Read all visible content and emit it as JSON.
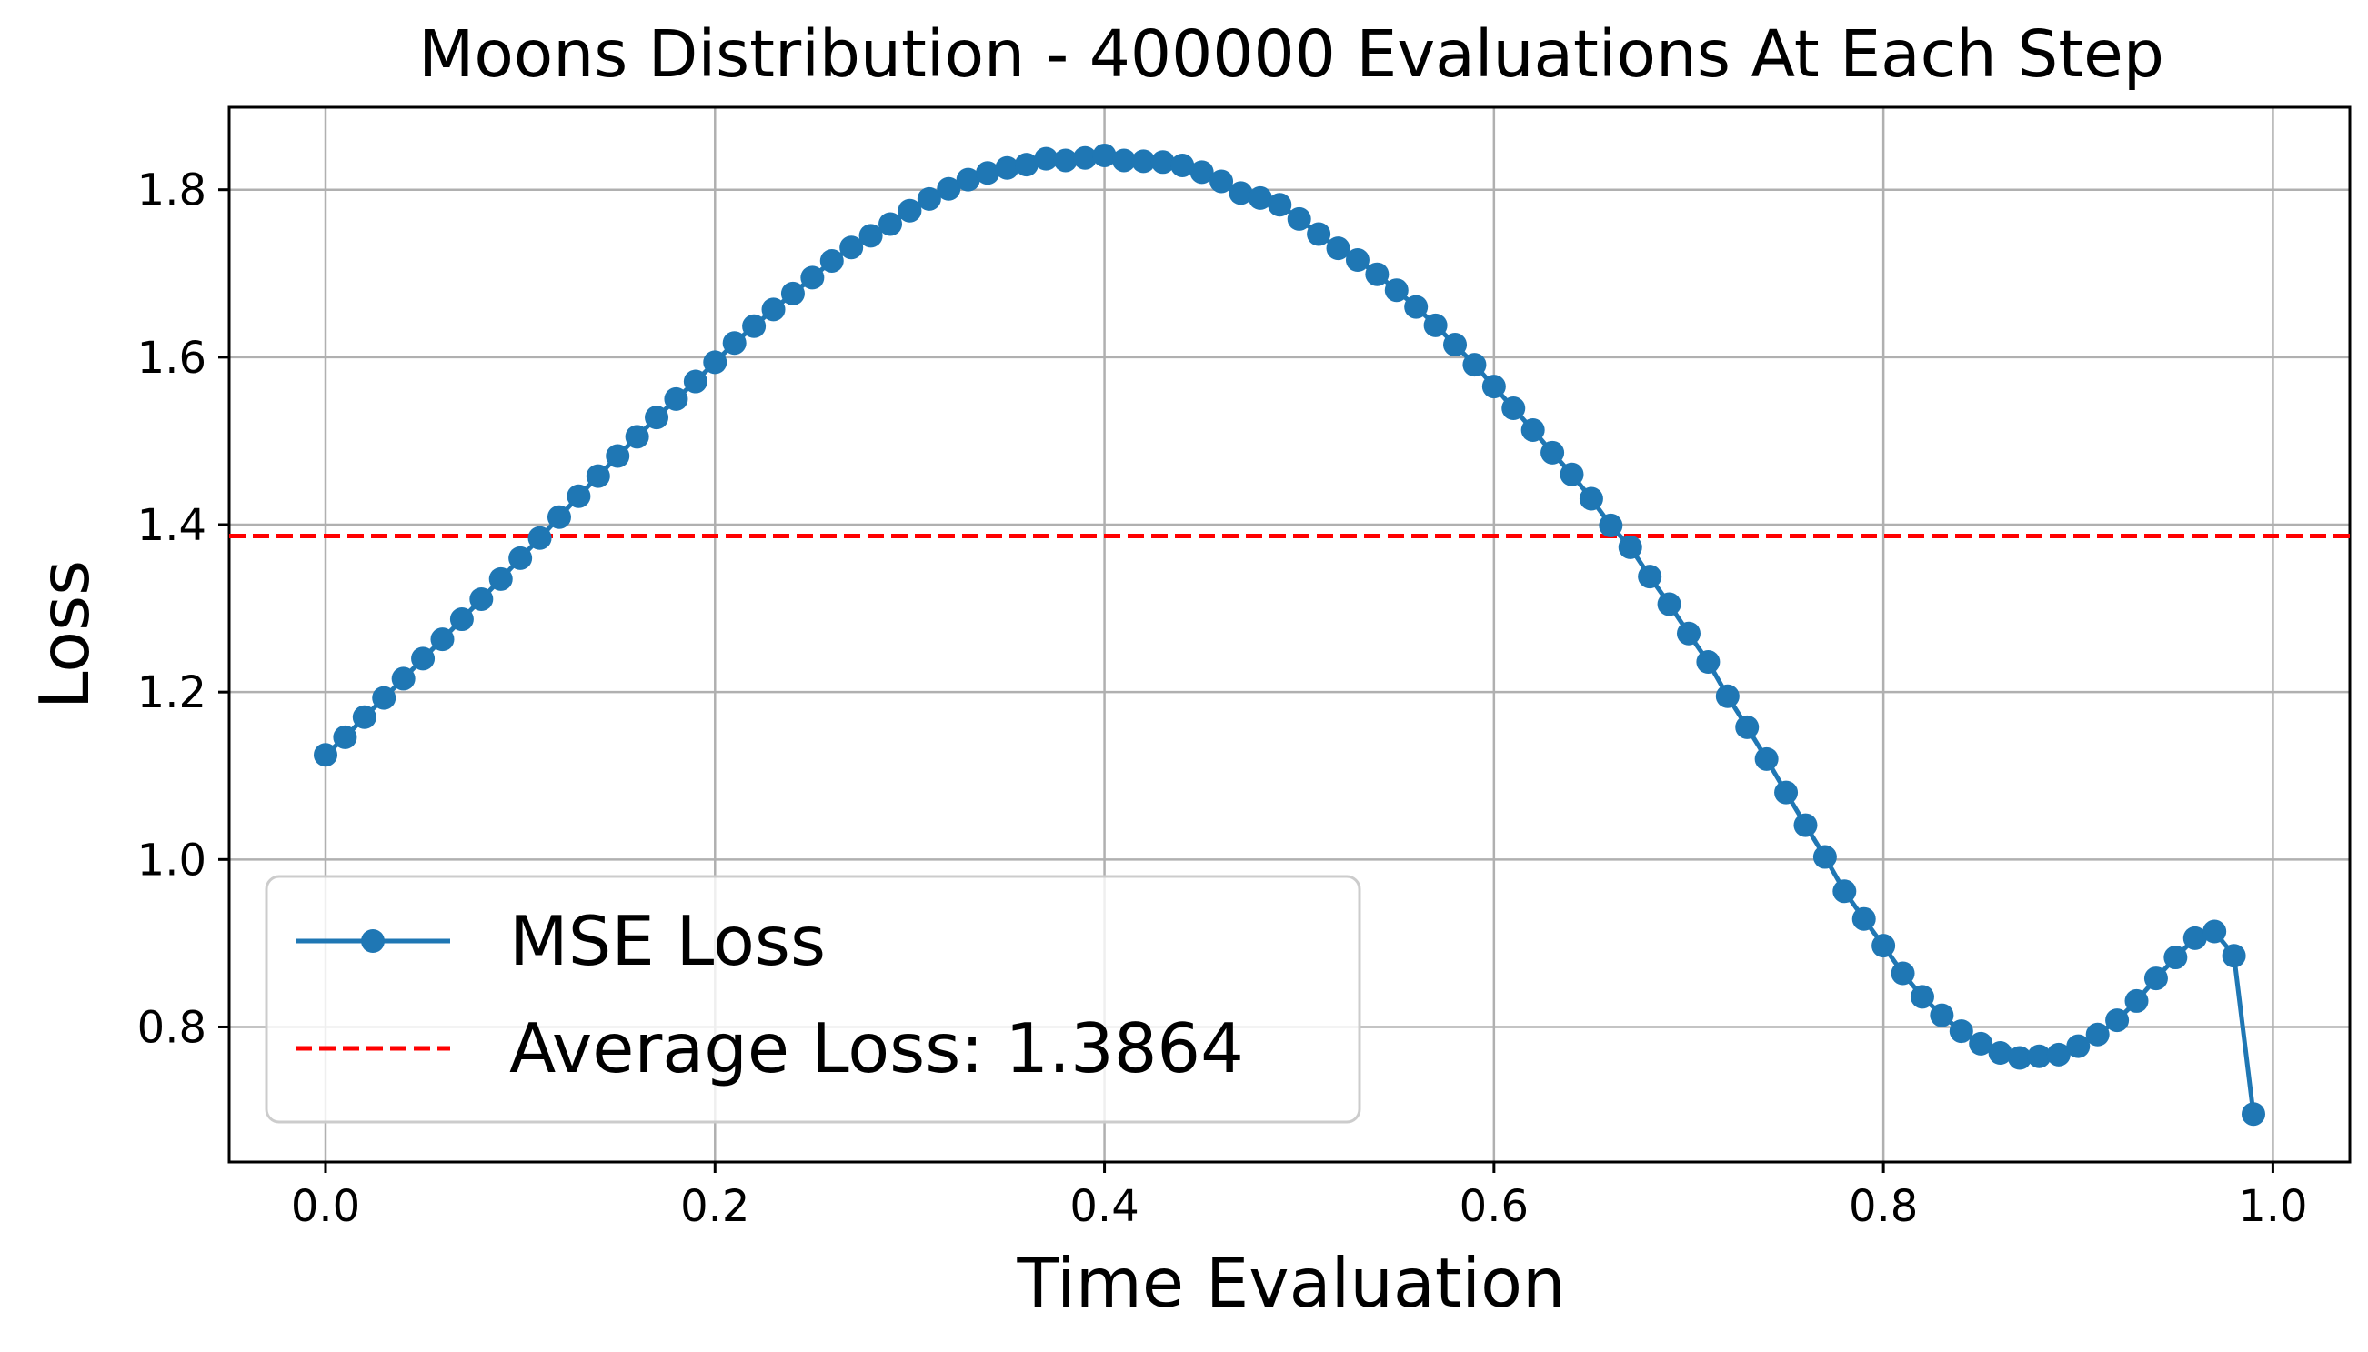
{
  "chart_data": {
    "type": "line",
    "title": "Moons Distribution - 400000 Evaluations At Each Step",
    "xlabel": "Time Evaluation",
    "ylabel": "Loss",
    "xlim": [
      -0.0495,
      1.0395
    ],
    "ylim": [
      0.6387,
      1.8985
    ],
    "xticks": [
      0.0,
      0.2,
      0.4,
      0.6,
      0.8,
      1.0
    ],
    "xtick_labels": [
      "0.0",
      "0.2",
      "0.4",
      "0.6",
      "0.8",
      "1.0"
    ],
    "yticks": [
      0.8,
      1.0,
      1.2,
      1.4,
      1.6,
      1.8
    ],
    "ytick_labels": [
      "0.8",
      "1.0",
      "1.2",
      "1.4",
      "1.6",
      "1.8"
    ],
    "grid": true,
    "legend_position": "lower-left",
    "series": [
      {
        "name": "MSE Loss",
        "style": "line-with-markers",
        "color": "#1f77b4",
        "x": [
          0.0,
          0.01,
          0.02,
          0.03,
          0.04,
          0.05,
          0.06,
          0.07,
          0.08,
          0.09,
          0.1,
          0.11,
          0.12,
          0.13,
          0.14,
          0.15,
          0.16,
          0.17,
          0.18,
          0.19,
          0.2,
          0.21,
          0.22,
          0.23,
          0.24,
          0.25,
          0.26,
          0.27,
          0.28,
          0.29,
          0.3,
          0.31,
          0.32,
          0.33,
          0.34,
          0.35,
          0.36,
          0.37,
          0.38,
          0.39,
          0.4,
          0.41,
          0.42,
          0.43,
          0.44,
          0.45,
          0.46,
          0.47,
          0.48,
          0.49,
          0.5,
          0.51,
          0.52,
          0.53,
          0.54,
          0.55,
          0.56,
          0.57,
          0.58,
          0.59,
          0.6,
          0.61,
          0.62,
          0.63,
          0.64,
          0.65,
          0.66,
          0.67,
          0.68,
          0.69,
          0.7,
          0.71,
          0.72,
          0.73,
          0.74,
          0.75,
          0.76,
          0.77,
          0.78,
          0.79,
          0.8,
          0.81,
          0.82,
          0.83,
          0.84,
          0.85,
          0.86,
          0.87,
          0.88,
          0.89,
          0.9,
          0.91,
          0.92,
          0.93,
          0.94,
          0.95,
          0.96,
          0.97,
          0.98,
          0.99
        ],
        "y": [
          1.125,
          1.146,
          1.17,
          1.193,
          1.216,
          1.24,
          1.263,
          1.287,
          1.311,
          1.335,
          1.36,
          1.384,
          1.409,
          1.434,
          1.458,
          1.482,
          1.505,
          1.528,
          1.55,
          1.571,
          1.594,
          1.617,
          1.637,
          1.657,
          1.676,
          1.695,
          1.715,
          1.731,
          1.745,
          1.759,
          1.775,
          1.789,
          1.801,
          1.812,
          1.82,
          1.826,
          1.83,
          1.837,
          1.835,
          1.838,
          1.841,
          1.835,
          1.834,
          1.833,
          1.829,
          1.821,
          1.81,
          1.796,
          1.79,
          1.782,
          1.765,
          1.747,
          1.73,
          1.716,
          1.699,
          1.68,
          1.66,
          1.638,
          1.615,
          1.591,
          1.565,
          1.539,
          1.513,
          1.486,
          1.46,
          1.431,
          1.399,
          1.373,
          1.338,
          1.305,
          1.27,
          1.236,
          1.195,
          1.158,
          1.12,
          1.08,
          1.041,
          1.003,
          0.962,
          0.929,
          0.897,
          0.864,
          0.836,
          0.814,
          0.795,
          0.78,
          0.769,
          0.763,
          0.765,
          0.767,
          0.777,
          0.791,
          0.808,
          0.831,
          0.858,
          0.883,
          0.906,
          0.914,
          0.885,
          0.696
        ]
      },
      {
        "name": "Average Loss: 1.3864",
        "style": "dashed-hline",
        "color": "#ff0000",
        "y_value": 1.3864
      }
    ]
  }
}
